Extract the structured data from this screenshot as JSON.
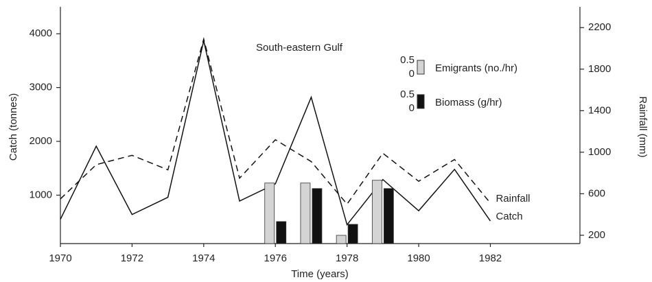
{
  "chart_data": {
    "type": "line",
    "title": "South-eastern Gulf",
    "x_label": "Time (years)",
    "y_label": "Catch (tonnes)",
    "y2_label": "Rainfall (mm)",
    "x": [
      1970,
      1971,
      1972,
      1973,
      1974,
      1975,
      1976,
      1977,
      1978,
      1979,
      1980,
      1981,
      1982
    ],
    "xlim": [
      1970,
      1984.5
    ],
    "xticks": [
      1970,
      1972,
      1974,
      1976,
      1978,
      1980,
      1982
    ],
    "ylim": [
      100,
      4500
    ],
    "yticks": [
      1000,
      2000,
      3000,
      4000
    ],
    "y2lim": [
      120,
      2400
    ],
    "y2ticks": [
      200,
      600,
      1000,
      1400,
      1800,
      2200
    ],
    "y3lim": [
      0,
      8.6
    ],
    "y3ticks": [
      0,
      0.5
    ],
    "series": [
      {
        "name": "Catch",
        "type": "line",
        "color": "#111111",
        "dashed": false,
        "values": [
          550,
          1910,
          640,
          960,
          3870,
          890,
          1210,
          2820,
          450,
          1290,
          710,
          1480,
          520
        ]
      },
      {
        "name": "Rainfall",
        "type": "line",
        "axis": "y2",
        "color": "#111111",
        "dashed": true,
        "values": [
          550,
          880,
          970,
          830,
          2090,
          750,
          1120,
          910,
          500,
          990,
          720,
          930,
          510
        ]
      },
      {
        "name": "Emigrants (no./hr)",
        "type": "bar",
        "axis": "y3",
        "color": "#d4d4d4",
        "x": [
          1976,
          1977,
          1978,
          1979
        ],
        "values": [
          2.2,
          2.2,
          0.3,
          2.3
        ]
      },
      {
        "name": "Biomass (g/hr)",
        "type": "bar",
        "axis": "y3",
        "color": "#111111",
        "x": [
          1976,
          1977,
          1978,
          1979
        ],
        "values": [
          0.8,
          2.0,
          0.7,
          2.0
        ]
      }
    ]
  }
}
